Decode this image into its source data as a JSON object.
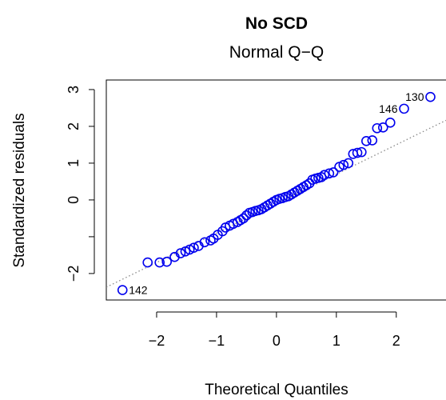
{
  "chart_data": {
    "type": "scatter",
    "title": "No SCD",
    "subtitle": "Normal Q−Q",
    "x_label": "Theoretical Quantiles",
    "y_label": "Standardized residuals",
    "color": "#0000ee",
    "x": [
      -2.57,
      -2.15,
      -1.95,
      -1.83,
      -1.7,
      -1.6,
      -1.52,
      -1.45,
      -1.38,
      -1.3,
      -1.2,
      -1.1,
      -1.05,
      -0.98,
      -0.9,
      -0.85,
      -0.78,
      -0.72,
      -0.65,
      -0.6,
      -0.55,
      -0.5,
      -0.45,
      -0.4,
      -0.35,
      -0.3,
      -0.25,
      -0.2,
      -0.15,
      -0.1,
      -0.05,
      0,
      0.05,
      0.1,
      0.15,
      0.2,
      0.25,
      0.3,
      0.35,
      0.4,
      0.45,
      0.5,
      0.55,
      0.6,
      0.65,
      0.7,
      0.75,
      0.8,
      0.88,
      0.95,
      1.05,
      1.12,
      1.2,
      1.28,
      1.35,
      1.42,
      1.5,
      1.6,
      1.68,
      1.78,
      1.9,
      2.13,
      2.57
    ],
    "values": [
      -2.45,
      -1.7,
      -1.7,
      -1.68,
      -1.55,
      -1.45,
      -1.4,
      -1.35,
      -1.3,
      -1.25,
      -1.15,
      -1.1,
      -1.05,
      -0.95,
      -0.85,
      -0.75,
      -0.7,
      -0.65,
      -0.6,
      -0.55,
      -0.5,
      -0.42,
      -0.35,
      -0.33,
      -0.3,
      -0.28,
      -0.25,
      -0.2,
      -0.15,
      -0.1,
      -0.05,
      0,
      0.03,
      0.05,
      0.08,
      0.1,
      0.15,
      0.2,
      0.25,
      0.3,
      0.35,
      0.4,
      0.45,
      0.55,
      0.58,
      0.6,
      0.62,
      0.68,
      0.72,
      0.75,
      0.9,
      0.95,
      1.0,
      1.25,
      1.28,
      1.3,
      1.6,
      1.62,
      1.95,
      1.97,
      2.1,
      2.48,
      2.8
    ],
    "point_labels": [
      "142",
      null,
      null,
      null,
      null,
      null,
      null,
      null,
      null,
      null,
      null,
      null,
      null,
      null,
      null,
      null,
      null,
      null,
      null,
      null,
      null,
      null,
      null,
      null,
      null,
      null,
      null,
      null,
      null,
      null,
      null,
      null,
      null,
      null,
      null,
      null,
      null,
      null,
      null,
      null,
      null,
      null,
      null,
      null,
      null,
      null,
      null,
      null,
      null,
      null,
      null,
      null,
      null,
      null,
      null,
      null,
      null,
      null,
      null,
      null,
      null,
      "146",
      "130"
    ],
    "reference_line": {
      "intercept": -0.1,
      "slope": 0.8
    },
    "xlim": [
      -2.84,
      2.83
    ],
    "ylim": [
      -2.72,
      3.26
    ],
    "xticks": [
      {
        "value": -2,
        "label": "−2"
      },
      {
        "value": -1,
        "label": "−1"
      },
      0,
      1,
      2
    ],
    "yticks": [
      3,
      2,
      1,
      0,
      {
        "value": -1,
        "label": null
      },
      {
        "value": -2,
        "label": "−2"
      }
    ]
  }
}
